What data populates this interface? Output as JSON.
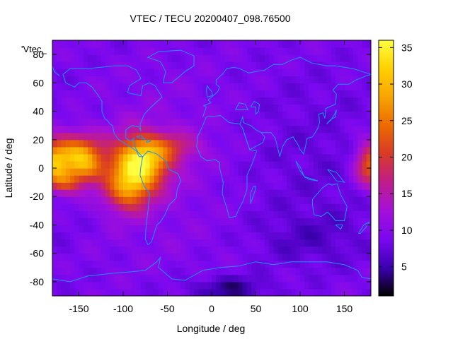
{
  "chart_data": {
    "type": "heatmap",
    "title": "VTEC / TECU 20200407_098.76500",
    "xlabel": "Longitude / deg",
    "ylabel": "Latitude / deg",
    "xlim": [
      -180,
      180
    ],
    "ylim": [
      -90,
      90
    ],
    "x_ticks": [
      -150,
      -100,
      -50,
      0,
      50,
      100,
      150
    ],
    "y_ticks": [
      -80,
      -60,
      -40,
      -20,
      0,
      20,
      40,
      60,
      80
    ],
    "x_tick_labels": [
      "-150",
      "-100",
      "-50",
      "0",
      "50",
      "100",
      "150"
    ],
    "y_tick_labels": [
      "-80",
      "-60",
      "-40",
      "-20",
      "0",
      "20",
      "40",
      "60",
      "80"
    ],
    "colorbar": {
      "range": [
        1,
        36
      ],
      "ticks": [
        5,
        10,
        15,
        20,
        25,
        30,
        35
      ],
      "tick_labels": [
        "5",
        "10",
        "15",
        "20",
        "25",
        "30",
        "35"
      ],
      "colors": [
        "#000000",
        "#3b00b0",
        "#7a08f0",
        "#a410d8",
        "#c01c8c",
        "#d83a28",
        "#ec6a00",
        "#f8a400",
        "#ffd000",
        "#ffff40"
      ]
    },
    "legend_label": "'Vtec_",
    "legend_placement": "top-left",
    "grid": false,
    "lon_step": 5,
    "lat_step": 5,
    "field_features": [
      {
        "lon": -155,
        "lat": 8,
        "sigma_lon": 22,
        "sigma_lat": 11,
        "amp": 20
      },
      {
        "lon": -140,
        "lat": 0,
        "sigma_lon": 12,
        "sigma_lat": 8,
        "amp": 6
      },
      {
        "lon": -165,
        "lat": -10,
        "sigma_lon": 12,
        "sigma_lat": 6,
        "amp": 9
      },
      {
        "lon": -80,
        "lat": 5,
        "sigma_lon": 22,
        "sigma_lat": 13,
        "amp": 24
      },
      {
        "lon": -95,
        "lat": -15,
        "sigma_lon": 18,
        "sigma_lat": 11,
        "amp": 14
      },
      {
        "lon": -40,
        "lat": 15,
        "sigma_lon": 22,
        "sigma_lat": 7,
        "amp": 6
      },
      {
        "lon": 180,
        "lat": 3,
        "sigma_lon": 12,
        "sigma_lat": 11,
        "amp": 15
      },
      {
        "lon": -180,
        "lat": 3,
        "sigma_lon": 10,
        "sigma_lat": 11,
        "amp": 12
      },
      {
        "lon": 20,
        "lat": -85,
        "sigma_lon": 30,
        "sigma_lat": 6,
        "amp": -5
      },
      {
        "lon": 110,
        "lat": -50,
        "sigma_lon": 40,
        "sigma_lat": 12,
        "amp": -2
      }
    ],
    "field_base": 9,
    "continent_color": "#1e90ff"
  }
}
